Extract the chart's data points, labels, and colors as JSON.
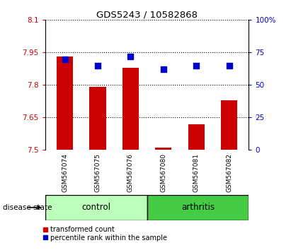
{
  "title": "GDS5243 / 10582868",
  "samples": [
    "GSM567074",
    "GSM567075",
    "GSM567076",
    "GSM567080",
    "GSM567081",
    "GSM567082"
  ],
  "transformed_count": [
    7.93,
    7.79,
    7.88,
    7.51,
    7.62,
    7.73
  ],
  "percentile_rank": [
    70,
    65,
    72,
    62,
    65,
    65
  ],
  "ylim_left": [
    7.5,
    8.1
  ],
  "ylim_right": [
    0,
    100
  ],
  "yticks_left": [
    7.5,
    7.65,
    7.8,
    7.95,
    8.1
  ],
  "yticks_right": [
    0,
    25,
    50,
    75,
    100
  ],
  "ytick_labels_left": [
    "7.5",
    "7.65",
    "7.8",
    "7.95",
    "8.1"
  ],
  "ytick_labels_right": [
    "0",
    "25",
    "50",
    "75",
    "100%"
  ],
  "bar_color": "#cc0000",
  "dot_color": "#0000cc",
  "control_color": "#bbffbb",
  "arthritis_color": "#44cc44",
  "xticklabel_area_color": "#cccccc",
  "legend_bar_label": "transformed count",
  "legend_dot_label": "percentile rank within the sample",
  "disease_state_label": "disease state",
  "control_label": "control",
  "arthritis_label": "arthritis",
  "bar_width": 0.5,
  "dot_size": 35,
  "dot_marker": "s",
  "bar_baseline": 7.5,
  "n_control": 3,
  "n_arthritis": 3
}
